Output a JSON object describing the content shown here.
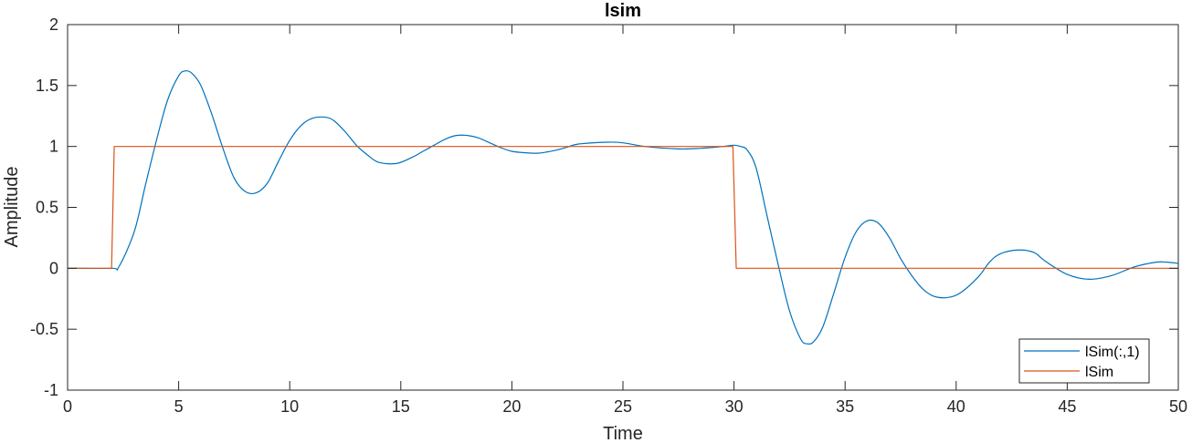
{
  "chart_data": {
    "type": "line",
    "title": "lsim",
    "xlabel": "Time",
    "ylabel": "Amplitude",
    "xlim": [
      0,
      50
    ],
    "ylim": [
      -1,
      2
    ],
    "xticks": [
      0,
      5,
      10,
      15,
      20,
      25,
      30,
      35,
      40,
      45,
      50
    ],
    "xtick_labels": [
      "0",
      "5",
      "10",
      "15",
      "20",
      "25",
      "30",
      "35",
      "40",
      "45",
      "50"
    ],
    "yticks": [
      -1,
      -0.5,
      0,
      0.5,
      1,
      1.5,
      2
    ],
    "ytick_labels": [
      "-1",
      "-0.5",
      "0",
      "0.5",
      "1",
      "1.5",
      "2"
    ],
    "grid": false,
    "legend_position": "bottom-right",
    "series": [
      {
        "name": "lSim(:,1)",
        "color": "#0072BD",
        "x": [
          0,
          2,
          2.3,
          3,
          3.5,
          4,
          4.5,
          5,
          5.3,
          5.6,
          6,
          6.5,
          7,
          7.5,
          8,
          8.5,
          9,
          9.5,
          10,
          10.5,
          11,
          11.6,
          12,
          12.5,
          13,
          13.5,
          14,
          14.8,
          15.5,
          16,
          16.5,
          17,
          17.5,
          18,
          18.5,
          19,
          19.5,
          20,
          20.5,
          21.2,
          22,
          22.5,
          23,
          24.3,
          25,
          26,
          27.5,
          28.5,
          29.5,
          30,
          30.3,
          30.6,
          31,
          31.5,
          32,
          32.5,
          33,
          33.3,
          33.6,
          34,
          34.5,
          35,
          35.5,
          36,
          36.5,
          37,
          37.5,
          38,
          38.5,
          39,
          39.6,
          40.2,
          41,
          41.5,
          42,
          42.8,
          43.5,
          44,
          45,
          46,
          47,
          48,
          49,
          49.5,
          50
        ],
        "y": [
          0,
          0,
          0.01,
          0.3,
          0.68,
          1.05,
          1.38,
          1.58,
          1.62,
          1.6,
          1.5,
          1.26,
          0.98,
          0.74,
          0.63,
          0.62,
          0.7,
          0.88,
          1.05,
          1.17,
          1.23,
          1.24,
          1.21,
          1.12,
          1.01,
          0.93,
          0.87,
          0.86,
          0.91,
          0.96,
          1.01,
          1.06,
          1.09,
          1.09,
          1.07,
          1.03,
          0.99,
          0.96,
          0.95,
          0.945,
          0.97,
          0.995,
          1.02,
          1.035,
          1.03,
          1.0,
          0.98,
          0.985,
          1.0,
          1.01,
          1.0,
          0.97,
          0.82,
          0.42,
          0.02,
          -0.35,
          -0.58,
          -0.62,
          -0.6,
          -0.48,
          -0.2,
          0.09,
          0.3,
          0.39,
          0.37,
          0.25,
          0.08,
          -0.06,
          -0.17,
          -0.23,
          -0.24,
          -0.2,
          -0.07,
          0.05,
          0.12,
          0.15,
          0.13,
          0.06,
          -0.05,
          -0.09,
          -0.06,
          0.01,
          0.05,
          0.05,
          0.04
        ]
      },
      {
        "name": "lSim",
        "color": "#D95319",
        "x": [
          0,
          1.98,
          2.1,
          29.95,
          30.1,
          50
        ],
        "y": [
          0,
          0,
          1,
          1,
          0,
          0
        ]
      }
    ]
  }
}
